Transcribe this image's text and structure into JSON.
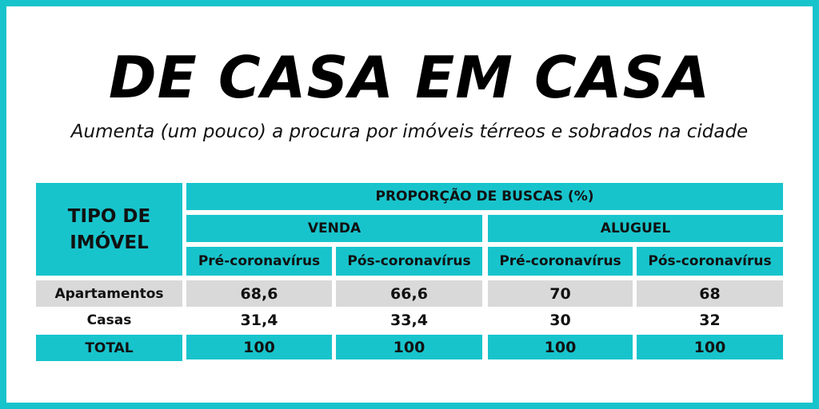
{
  "title": "DE CASA EM CASA",
  "subtitle": "Aumenta (um pouco) a procura por imóveis térreos e sobrados na cidade",
  "table": {
    "type_header_line1": "TIPO DE",
    "type_header_line2": "IMÓVEL",
    "main_header": "PROPORÇÃO DE BUSCAS (%)",
    "groups": [
      "VENDA",
      "ALUGUEL"
    ],
    "periods": [
      "Pré-coronavírus",
      "Pós-coronavírus",
      "Pré-coronavírus",
      "Pós-coronavírus"
    ],
    "rows": [
      {
        "label": "Apartamentos",
        "values": [
          "68,6",
          "66,6",
          "70",
          "68"
        ]
      },
      {
        "label": "Casas",
        "values": [
          "31,4",
          "33,4",
          "30",
          "32"
        ]
      },
      {
        "label": "TOTAL",
        "values": [
          "100",
          "100",
          "100",
          "100"
        ]
      }
    ]
  },
  "colors": {
    "accent": "#18c4cc",
    "row_highlight": "#d9d9d9",
    "background": "#ffffff"
  }
}
